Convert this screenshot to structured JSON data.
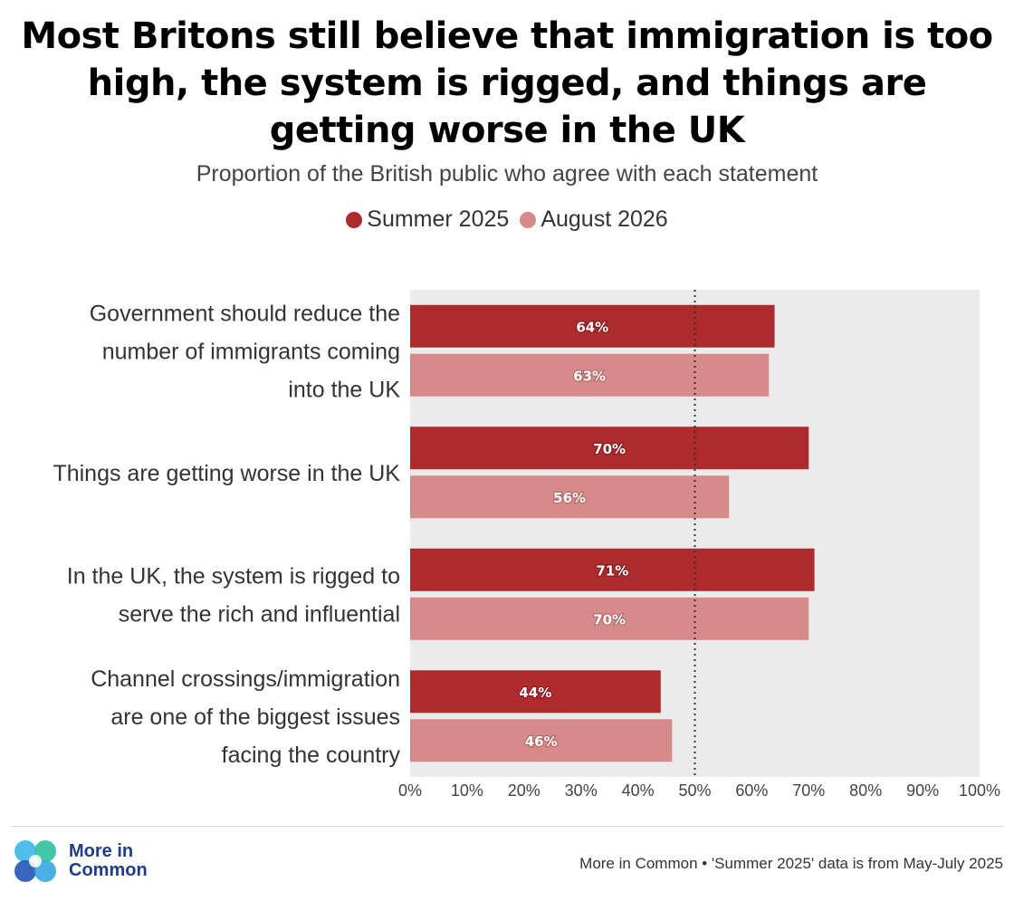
{
  "chart_data": {
    "type": "bar",
    "orientation": "horizontal",
    "title": "Most Britons still believe that immigration is too high, the system is rigged, and things are getting worse in the UK",
    "subtitle": "Proportion of the British public who agree with each statement",
    "categories": [
      [
        "Government should reduce the",
        "number of immigrants coming",
        "into the UK"
      ],
      [
        "Things are getting worse in the UK"
      ],
      [
        "In the UK, the system is rigged to",
        "serve the rich and influential"
      ],
      [
        "Channel crossings/immigration",
        "are one of the biggest issues",
        "facing the country"
      ]
    ],
    "series": [
      {
        "name": "Summer 2025",
        "color": "#ad2a2d",
        "values": [
          64,
          70,
          71,
          44
        ],
        "labels": [
          "64%",
          "70%",
          "71%",
          "44%"
        ]
      },
      {
        "name": "August 2026",
        "color": "#d68a89",
        "values": [
          63,
          56,
          70,
          46
        ],
        "labels": [
          "63%",
          "56%",
          "70%",
          "46%"
        ]
      }
    ],
    "xlim": [
      0,
      100
    ],
    "xticks": [
      0,
      10,
      20,
      30,
      40,
      50,
      60,
      70,
      80,
      90,
      100
    ],
    "xtick_labels": [
      "0%",
      "10%",
      "20%",
      "30%",
      "40%",
      "50%",
      "60%",
      "70%",
      "80%",
      "90%",
      "100%"
    ],
    "reference_line": 50,
    "legend_position": "top-center",
    "plot_background": "#ebebeb",
    "grid": false
  },
  "footer": {
    "logo_line1": "More in",
    "logo_line2": "Common",
    "source": "More in Common • 'Summer 2025' data is from May-July 2025"
  }
}
